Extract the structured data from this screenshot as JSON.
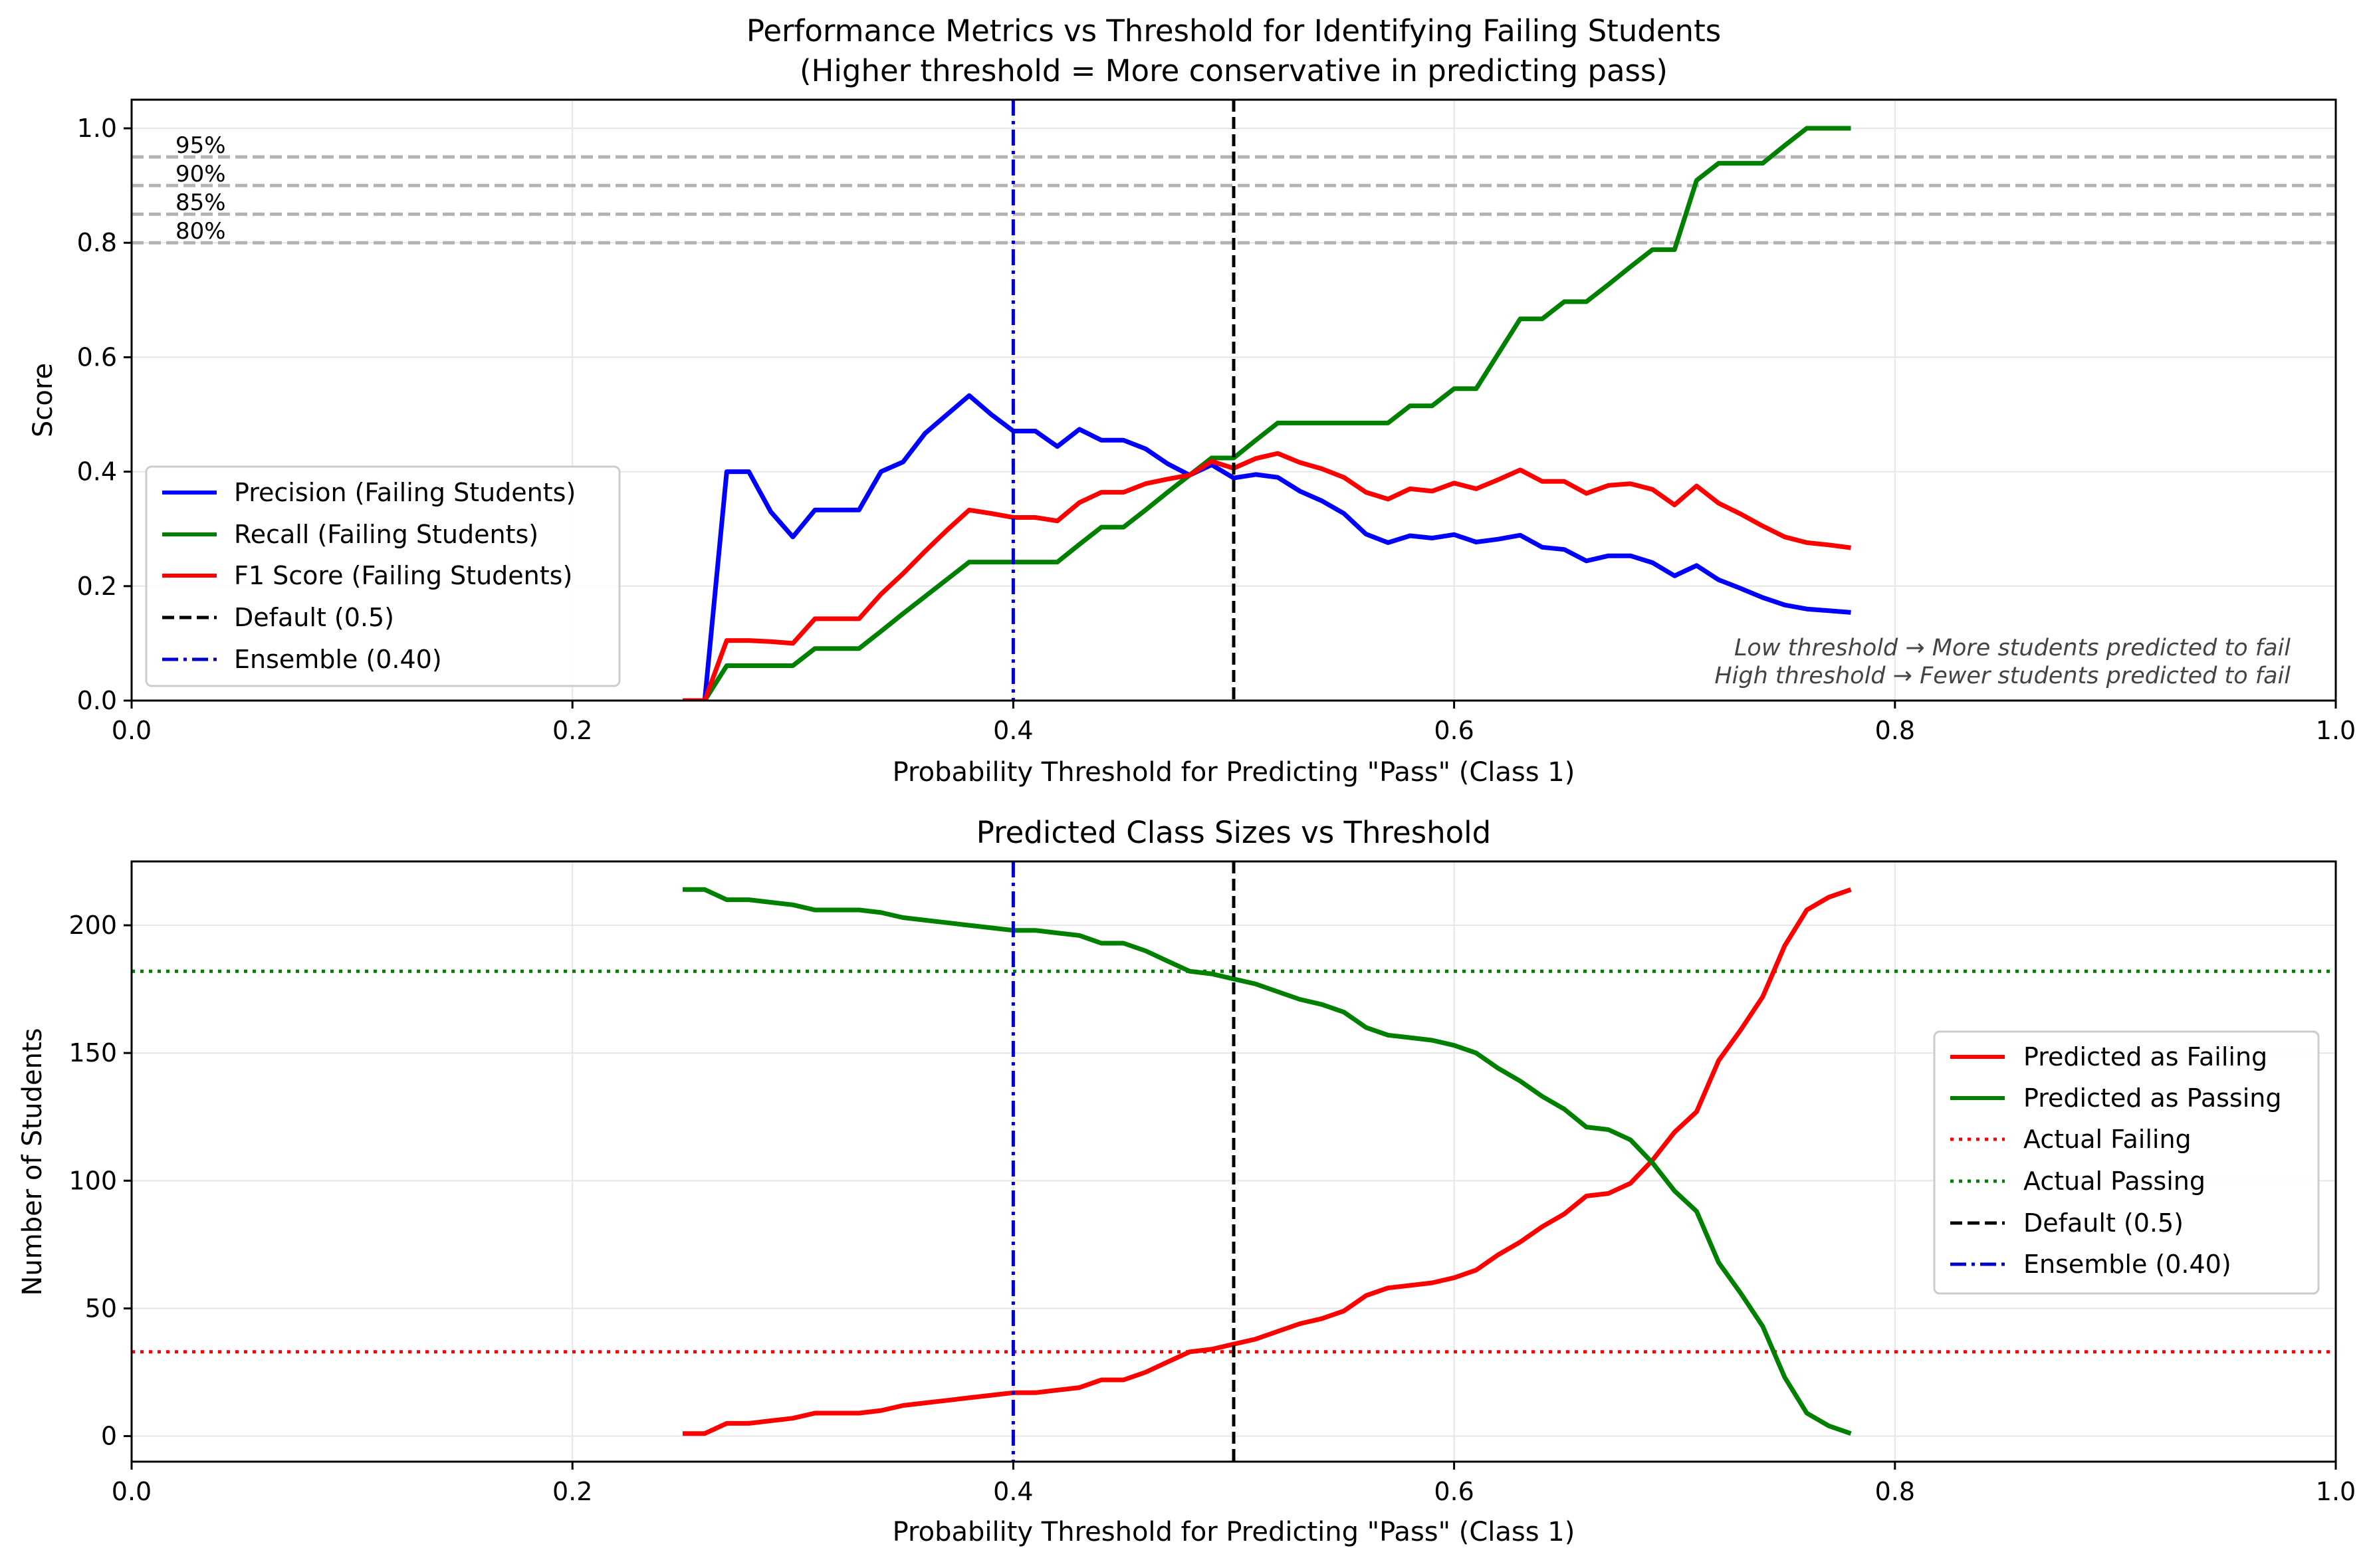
{
  "colors": {
    "precision": "#0000ff",
    "recall": "#008000",
    "f1": "#ff0000",
    "default_line": "#000000",
    "ensemble_line": "#0000cc",
    "ref_lines": "#b3b3b3",
    "grid": "#e6e6e6",
    "actual_failing": "#ff0000",
    "actual_passing": "#008000"
  },
  "chart_data": [
    {
      "type": "line",
      "title": "Performance Metrics vs Threshold for Identifying Failing Students",
      "subtitle": "(Higher threshold = More conservative in predicting pass)",
      "xlabel": "Probability Threshold for Predicting \"Pass\" (Class 1)",
      "ylabel": "Score",
      "xlim": [
        0.0,
        1.0
      ],
      "ylim": [
        0.0,
        1.05
      ],
      "xticks": [
        "0.0",
        "0.2",
        "0.4",
        "0.6",
        "0.8",
        "1.0"
      ],
      "yticks": [
        "0.0",
        "0.2",
        "0.4",
        "0.6",
        "0.8",
        "1.0"
      ],
      "grid": true,
      "legend_position": "lower-left",
      "x": [
        0.25,
        0.26,
        0.27,
        0.28,
        0.29,
        0.3,
        0.31,
        0.32,
        0.33,
        0.34,
        0.35,
        0.36,
        0.37,
        0.38,
        0.39,
        0.4,
        0.41,
        0.42,
        0.43,
        0.44,
        0.45,
        0.46,
        0.47,
        0.48,
        0.49,
        0.5,
        0.51,
        0.52,
        0.53,
        0.54,
        0.55,
        0.56,
        0.57,
        0.58,
        0.59,
        0.6,
        0.61,
        0.62,
        0.63,
        0.64,
        0.65,
        0.66,
        0.67,
        0.68,
        0.69,
        0.7,
        0.71,
        0.72,
        0.73,
        0.74,
        0.75,
        0.76,
        0.77,
        0.78
      ],
      "series": [
        {
          "name": "Precision (Failing Students)",
          "values": [
            0.0,
            0.0,
            0.4,
            0.4,
            0.33,
            0.286,
            0.333,
            0.333,
            0.333,
            0.4,
            0.417,
            0.467,
            0.5,
            0.533,
            0.5,
            0.471,
            0.471,
            0.444,
            0.474,
            0.455,
            0.455,
            0.44,
            0.414,
            0.394,
            0.412,
            0.389,
            0.395,
            0.39,
            0.366,
            0.349,
            0.327,
            0.291,
            0.276,
            0.288,
            0.284,
            0.29,
            0.277,
            0.282,
            0.289,
            0.268,
            0.264,
            0.244,
            0.253,
            0.253,
            0.241,
            0.218,
            0.236,
            0.211,
            0.196,
            0.18,
            0.167,
            0.16,
            0.157,
            0.154
          ]
        },
        {
          "name": "Recall (Failing Students)",
          "values": [
            0.0,
            0.0,
            0.061,
            0.061,
            0.061,
            0.061,
            0.091,
            0.091,
            0.091,
            0.121,
            0.152,
            0.182,
            0.212,
            0.242,
            0.242,
            0.242,
            0.242,
            0.242,
            0.273,
            0.303,
            0.303,
            0.333,
            0.364,
            0.394,
            0.424,
            0.424,
            0.455,
            0.485,
            0.485,
            0.485,
            0.485,
            0.485,
            0.485,
            0.515,
            0.515,
            0.545,
            0.545,
            0.606,
            0.667,
            0.667,
            0.697,
            0.697,
            0.727,
            0.758,
            0.788,
            0.788,
            0.909,
            0.939,
            0.939,
            0.939,
            0.97,
            1.0,
            1.0,
            1.0
          ]
        },
        {
          "name": "F1 Score (Failing Students)",
          "values": [
            0.0,
            0.0,
            0.105,
            0.105,
            0.103,
            0.1,
            0.143,
            0.143,
            0.143,
            0.186,
            0.222,
            0.261,
            0.298,
            0.333,
            0.327,
            0.32,
            0.32,
            0.314,
            0.346,
            0.364,
            0.364,
            0.379,
            0.387,
            0.394,
            0.418,
            0.406,
            0.423,
            0.432,
            0.416,
            0.405,
            0.39,
            0.364,
            0.352,
            0.37,
            0.366,
            0.38,
            0.37,
            0.386,
            0.403,
            0.383,
            0.383,
            0.362,
            0.376,
            0.379,
            0.369,
            0.342,
            0.375,
            0.345,
            0.326,
            0.305,
            0.286,
            0.276,
            0.272,
            0.267
          ]
        }
      ],
      "vlines": [
        {
          "name": "Default (0.5)",
          "x": 0.5,
          "style": "dashed"
        },
        {
          "name": "Ensemble (0.40)",
          "x": 0.4,
          "style": "dashdot"
        }
      ],
      "reference_lines": [
        {
          "label": "95%",
          "y": 0.95
        },
        {
          "label": "90%",
          "y": 0.9
        },
        {
          "label": "85%",
          "y": 0.85
        },
        {
          "label": "80%",
          "y": 0.8
        }
      ],
      "annotations": [
        "Low threshold → More students predicted to fail",
        "High threshold → Fewer students predicted to fail"
      ]
    },
    {
      "type": "line",
      "title": "Predicted Class Sizes vs Threshold",
      "xlabel": "Probability Threshold for Predicting \"Pass\" (Class 1)",
      "ylabel": "Number of Students",
      "xlim": [
        0.0,
        1.0
      ],
      "ylim": [
        -10,
        225
      ],
      "xticks": [
        "0.0",
        "0.2",
        "0.4",
        "0.6",
        "0.8",
        "1.0"
      ],
      "yticks": [
        "0",
        "50",
        "100",
        "150",
        "200"
      ],
      "grid": true,
      "legend_position": "center-right",
      "x": [
        0.25,
        0.26,
        0.27,
        0.28,
        0.29,
        0.3,
        0.31,
        0.32,
        0.33,
        0.34,
        0.35,
        0.36,
        0.37,
        0.38,
        0.39,
        0.4,
        0.41,
        0.42,
        0.43,
        0.44,
        0.45,
        0.46,
        0.47,
        0.48,
        0.49,
        0.5,
        0.51,
        0.52,
        0.53,
        0.54,
        0.55,
        0.56,
        0.57,
        0.58,
        0.59,
        0.6,
        0.61,
        0.62,
        0.63,
        0.64,
        0.65,
        0.66,
        0.67,
        0.68,
        0.69,
        0.7,
        0.71,
        0.72,
        0.73,
        0.74,
        0.75,
        0.76,
        0.77,
        0.78
      ],
      "series": [
        {
          "name": "Predicted as Failing",
          "values": [
            1,
            1,
            5,
            5,
            6,
            7,
            9,
            9,
            9,
            10,
            12,
            13,
            14,
            15,
            16,
            17,
            17,
            18,
            19,
            22,
            22,
            25,
            29,
            33,
            34,
            36,
            38,
            41,
            44,
            46,
            49,
            55,
            58,
            59,
            60,
            62,
            65,
            71,
            76,
            82,
            87,
            94,
            95,
            99,
            108,
            119,
            127,
            147,
            159,
            172,
            192,
            206,
            211,
            214
          ]
        },
        {
          "name": "Predicted as Passing",
          "values": [
            214,
            214,
            210,
            210,
            209,
            208,
            206,
            206,
            206,
            205,
            203,
            202,
            201,
            200,
            199,
            198,
            198,
            197,
            196,
            193,
            193,
            190,
            186,
            182,
            181,
            179,
            177,
            174,
            171,
            169,
            166,
            160,
            157,
            156,
            155,
            153,
            150,
            144,
            139,
            133,
            128,
            121,
            120,
            116,
            107,
            96,
            88,
            68,
            56,
            43,
            23,
            9,
            4,
            1
          ]
        }
      ],
      "hlines": [
        {
          "name": "Actual Failing",
          "y": 33,
          "style": "dotted"
        },
        {
          "name": "Actual Passing",
          "y": 182,
          "style": "dotted"
        }
      ],
      "vlines": [
        {
          "name": "Default (0.5)",
          "x": 0.5,
          "style": "dashed"
        },
        {
          "name": "Ensemble (0.40)",
          "x": 0.4,
          "style": "dashdot"
        }
      ]
    }
  ]
}
